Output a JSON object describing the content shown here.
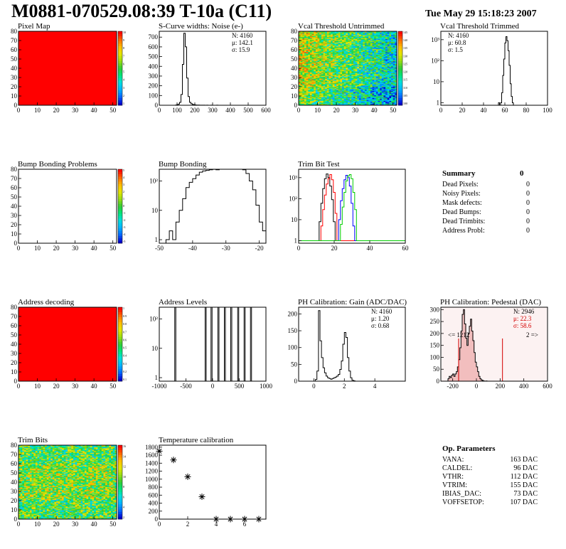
{
  "header": {
    "title": "M0881-070529.08:39 T-10a (C11)",
    "date": "Tue May 29 15:18:23 2007"
  },
  "chart_data": [
    {
      "id": "pixel_map",
      "type": "heatmap",
      "title": "Pixel Map",
      "xlim": [
        0,
        52
      ],
      "ylim": [
        0,
        80
      ],
      "xticks": [
        0,
        10,
        20,
        30,
        40,
        50
      ],
      "yticks": [
        0,
        10,
        20,
        30,
        40,
        50,
        60,
        70,
        80
      ],
      "fill": "uniform",
      "fill_color": "#ff0000",
      "colorbar": {
        "min": 0,
        "max": 10,
        "labels": [
          "10",
          "9",
          "8",
          "7",
          "6",
          "5",
          "4",
          "3",
          "2",
          "1"
        ]
      }
    },
    {
      "id": "scurve_widths",
      "type": "bar",
      "title": "S-Curve widths: Noise (e-)",
      "xlim": [
        0,
        600
      ],
      "ylim": [
        0,
        760
      ],
      "xticks": [
        0,
        100,
        200,
        300,
        400,
        500,
        600
      ],
      "yticks": [
        0,
        100,
        200,
        300,
        400,
        500,
        600,
        700
      ],
      "stats": [
        "N: 4160",
        "μ: 142.1",
        "σ: 15.9"
      ],
      "bin_start": 90,
      "bin_width": 8,
      "values": [
        2,
        6,
        12,
        30,
        110,
        420,
        740,
        600,
        280,
        90,
        30,
        15,
        8,
        5,
        3,
        2,
        2,
        1,
        1,
        1,
        1,
        0,
        1,
        0,
        0,
        1,
        0,
        0,
        0,
        1
      ]
    },
    {
      "id": "vcal_untrimmed",
      "type": "heatmap",
      "title": "Vcal Threshold Untrimmed",
      "xlim": [
        0,
        52
      ],
      "ylim": [
        0,
        80
      ],
      "xticks": [
        0,
        10,
        20,
        30,
        40,
        50
      ],
      "yticks": [
        0,
        10,
        20,
        30,
        40,
        50,
        60,
        70,
        80
      ],
      "fill": "random",
      "value_range": [
        100,
        145
      ],
      "colorbar": {
        "min": 100,
        "max": 145,
        "labels": [
          "145",
          "140",
          "135",
          "130",
          "125",
          "120",
          "115",
          "110",
          "105",
          "100"
        ]
      }
    },
    {
      "id": "vcal_trimmed",
      "type": "bar",
      "title": "Vcal Threshold Trimmed",
      "log_y": true,
      "xlim": [
        0,
        100
      ],
      "xticks": [
        0,
        20,
        40,
        60,
        80,
        100
      ],
      "yticks": [
        1,
        10,
        100,
        1000
      ],
      "yticklabels": [
        "1",
        "10",
        "10²",
        "10³"
      ],
      "stats": [
        "N: 4160",
        "μ: 60.8",
        "σ:  1.5"
      ],
      "bin_start": 54,
      "bin_width": 1,
      "values": [
        1,
        0,
        1,
        3,
        20,
        120,
        700,
        1400,
        900,
        300,
        60,
        8,
        2,
        1
      ]
    },
    {
      "id": "bump_problems",
      "type": "heatmap",
      "title": "Bump Bonding Problems",
      "xlim": [
        0,
        52
      ],
      "ylim": [
        0,
        80
      ],
      "xticks": [
        0,
        10,
        20,
        30,
        40,
        50
      ],
      "yticks": [
        0,
        10,
        20,
        30,
        40,
        50,
        60,
        70,
        80
      ],
      "fill": "empty",
      "colorbar": {
        "min": -5,
        "max": 5,
        "labels": [
          "5",
          "4",
          "3",
          "2",
          "1",
          "0",
          "-1",
          "-2",
          "-3",
          "-4",
          "-5"
        ]
      }
    },
    {
      "id": "bump_bonding",
      "type": "bar",
      "title": "Bump Bonding",
      "log_y": true,
      "xlim": [
        -50,
        -18
      ],
      "xticks": [
        -50,
        -40,
        -30,
        -20
      ],
      "yticks": [
        1,
        10,
        100
      ],
      "yticklabels": [
        "1",
        "10",
        "10²"
      ],
      "bin_start": -48,
      "bin_width": 1,
      "values": [
        1,
        2,
        1,
        4,
        10,
        25,
        60,
        90,
        120,
        160,
        200,
        220,
        230,
        240,
        250,
        240,
        260,
        280,
        300,
        350,
        400,
        380,
        300,
        240,
        180,
        100,
        50,
        15,
        4,
        2
      ]
    },
    {
      "id": "trim_bit_test",
      "type": "line",
      "title": "Trim Bit Test",
      "log_y": true,
      "xlim": [
        0,
        60
      ],
      "xticks": [
        0,
        20,
        40,
        60
      ],
      "yticks": [
        1,
        10,
        100,
        1000
      ],
      "yticklabels": [
        "1",
        "10",
        "10²",
        "10³"
      ],
      "series": [
        {
          "color": "#000000",
          "x": [
            11,
            12,
            13,
            14,
            15,
            16,
            17,
            18,
            19,
            20,
            21
          ],
          "values": [
            1,
            8,
            60,
            300,
            900,
            1500,
            1000,
            400,
            90,
            8,
            1
          ]
        },
        {
          "color": "#ff0000",
          "x": [
            12,
            13,
            14,
            15,
            16,
            17,
            18,
            19,
            20,
            21,
            22
          ],
          "values": [
            1,
            5,
            30,
            150,
            500,
            900,
            1400,
            800,
            200,
            20,
            1
          ]
        },
        {
          "color": "#0000ff",
          "x": [
            22,
            23,
            24,
            25,
            26,
            27,
            28,
            29,
            30,
            31,
            32
          ],
          "values": [
            1,
            10,
            80,
            300,
            800,
            1300,
            1000,
            400,
            60,
            5,
            1
          ]
        },
        {
          "color": "#00cc00",
          "x": [
            23,
            24,
            25,
            26,
            27,
            28,
            29,
            30,
            31,
            32,
            33
          ],
          "values": [
            1,
            6,
            40,
            200,
            700,
            1200,
            1400,
            900,
            200,
            30,
            1
          ]
        }
      ]
    },
    {
      "id": "address_decoding",
      "type": "heatmap",
      "title": "Address decoding",
      "xlim": [
        0,
        52
      ],
      "ylim": [
        0,
        80
      ],
      "xticks": [
        0,
        10,
        20,
        30,
        40,
        50
      ],
      "yticks": [
        0,
        10,
        20,
        30,
        40,
        50,
        60,
        70,
        80
      ],
      "fill": "uniform",
      "fill_color": "#ff0000",
      "colorbar": {
        "min": 0,
        "max": 1,
        "labels": [
          "1",
          "0.9",
          "0.8",
          "0.7",
          "0.6",
          "0.5",
          "0.4",
          "0.3",
          "0.2",
          "0.1"
        ]
      }
    },
    {
      "id": "address_levels",
      "type": "bar",
      "title": "Address Levels",
      "log_y": true,
      "xlim": [
        -1000,
        1000
      ],
      "xticks": [
        -1000,
        -500,
        0,
        500,
        1000
      ],
      "yticks": [
        1,
        10,
        100
      ],
      "yticklabels": [
        "1",
        "10",
        "10²"
      ],
      "bin_width": 20,
      "spikes": [
        [
          -700,
          600
        ],
        [
          -130,
          500
        ],
        [
          -20,
          550
        ],
        [
          110,
          600
        ],
        [
          230,
          450
        ],
        [
          350,
          500
        ],
        [
          480,
          550
        ],
        [
          600,
          500
        ],
        [
          720,
          650
        ]
      ]
    },
    {
      "id": "ph_gain",
      "type": "bar",
      "title": "PH Calibration: Gain (ADC/DAC)",
      "xlim": [
        -1,
        6
      ],
      "ylim": [
        0,
        220
      ],
      "xticks": [
        0,
        2,
        4
      ],
      "yticks": [
        0,
        50,
        100,
        150,
        200
      ],
      "stats": [
        "N: 4160",
        "μ: 1.20",
        "σ: 0.68"
      ],
      "bin_start": 0.1,
      "bin_width": 0.1,
      "values": [
        5,
        30,
        210,
        120,
        70,
        40,
        25,
        15,
        10,
        8,
        6,
        8,
        10,
        12,
        15,
        20,
        35,
        60,
        110,
        145,
        130,
        70,
        30,
        10,
        3,
        1
      ]
    },
    {
      "id": "ph_pedestal",
      "type": "bar",
      "title": "PH Calibration: Pedestal (DAC)",
      "xlim": [
        -300,
        600
      ],
      "ylim": [
        0,
        310
      ],
      "xticks": [
        -200,
        0,
        200,
        400,
        600
      ],
      "yticks": [
        0,
        50,
        100,
        150,
        200,
        250,
        300
      ],
      "stats": [
        "N: 2946",
        "μ: 22.3",
        "σ: 58.6"
      ],
      "stat_colors": [
        "#000000",
        "#d40000",
        "#d40000"
      ],
      "overflow_labels": [
        "<= 1212",
        "2 =>"
      ],
      "cut_lines": [
        -150,
        220
      ],
      "bin_start": -240,
      "bin_width": 10,
      "values": [
        10,
        20,
        15,
        25,
        30,
        20,
        30,
        40,
        60,
        90,
        140,
        210,
        280,
        300,
        240,
        180,
        150,
        200,
        230,
        260,
        210,
        170,
        120,
        80,
        60,
        40,
        20,
        10,
        5,
        3,
        1,
        0,
        1,
        0,
        0,
        0,
        0,
        0,
        0,
        0,
        0,
        0,
        0,
        0,
        0,
        0
      ]
    },
    {
      "id": "trim_bits",
      "type": "heatmap",
      "title": "Trim Bits",
      "xlim": [
        0,
        52
      ],
      "ylim": [
        0,
        80
      ],
      "xticks": [
        0,
        10,
        20,
        30,
        40,
        50
      ],
      "yticks": [
        0,
        10,
        20,
        30,
        40,
        50,
        60,
        70,
        80
      ],
      "fill": "random",
      "value_range": [
        0,
        15
      ],
      "colorbar": {
        "min": 0,
        "max": 16,
        "labels": [
          "16",
          "14",
          "12",
          "10",
          "8",
          "6",
          "4",
          "2"
        ]
      }
    },
    {
      "id": "temperature_calibration",
      "type": "scatter",
      "title": "Temperature calibration",
      "xlim": [
        0,
        7.5
      ],
      "ylim": [
        0,
        1850
      ],
      "xticks": [
        0,
        2,
        4,
        6
      ],
      "yticks": [
        0,
        200,
        400,
        600,
        800,
        1000,
        1200,
        1400,
        1600,
        1800
      ],
      "x": [
        0,
        1,
        2,
        3,
        4,
        5,
        6,
        7
      ],
      "y": [
        1700,
        1480,
        1060,
        560,
        0,
        0,
        0,
        0
      ]
    }
  ],
  "summary": {
    "title": "Summary",
    "total": "0",
    "rows": [
      {
        "label": "Dead Pixels:",
        "value": "0"
      },
      {
        "label": "Noisy Pixels:",
        "value": "0"
      },
      {
        "label": "Mask defects:",
        "value": "0"
      },
      {
        "label": "Dead Bumps:",
        "value": "0"
      },
      {
        "label": "Dead Trimbits:",
        "value": "0"
      },
      {
        "label": "Address Probl:",
        "value": "0"
      }
    ]
  },
  "op_params": {
    "title": "Op. Parameters",
    "rows": [
      {
        "label": "VANA:",
        "value": "163 DAC"
      },
      {
        "label": "CALDEL:",
        "value": "96 DAC"
      },
      {
        "label": "VTHR:",
        "value": "112 DAC"
      },
      {
        "label": "VTRIM:",
        "value": "155 DAC"
      },
      {
        "label": "IBIAS_DAC:",
        "value": "73 DAC"
      },
      {
        "label": "VOFFSETOP:",
        "value": "107 DAC"
      }
    ]
  }
}
